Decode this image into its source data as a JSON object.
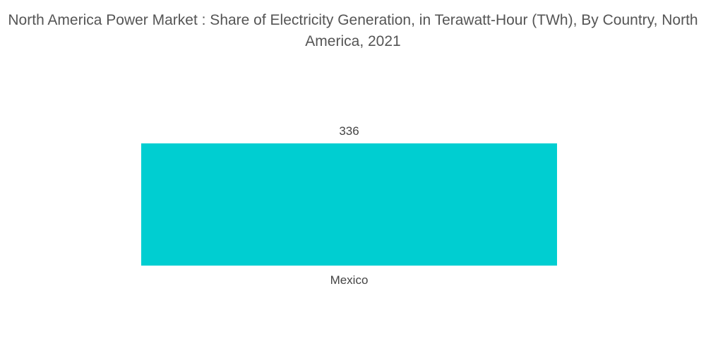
{
  "chart_data": {
    "type": "bar",
    "title": "North America Power Market : Share of Electricity Generation, in Terawatt-Hour (TWh), By Country, North America, 2021",
    "categories": [
      "Mexico"
    ],
    "values": [
      336
    ],
    "data_labels": [
      "336"
    ],
    "xlabel": "",
    "ylabel": "",
    "ylim": [
      0,
      336
    ],
    "grid": false,
    "legend": "none",
    "bar_color": "#00CED1"
  }
}
